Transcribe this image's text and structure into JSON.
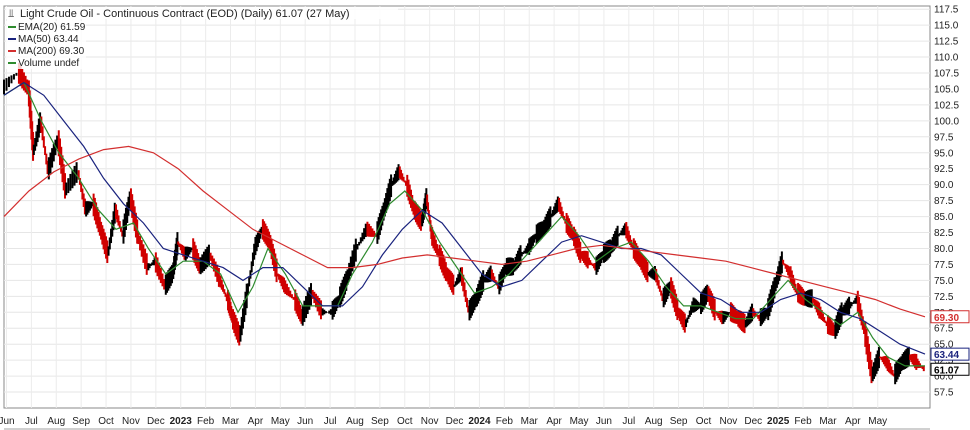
{
  "chart_data": {
    "type": "line",
    "title": "Light Crude Oil - Continuous Contract (EOD) (Daily) 61.07 (27 May)",
    "ylim": [
      55,
      118
    ],
    "grid": true,
    "legend_placement": "top-left",
    "y_ticks": [
      "57.5",
      "60.0",
      "62.5",
      "65.0",
      "67.5",
      "70.0",
      "72.5",
      "75.0",
      "77.5",
      "80.0",
      "82.5",
      "85.0",
      "87.5",
      "90.0",
      "92.5",
      "95.0",
      "97.5",
      "100.0",
      "102.5",
      "105.0",
      "107.5",
      "110.0",
      "112.5",
      "115.0",
      "117.5"
    ],
    "x_labels": [
      {
        "label": "Jun",
        "year": false
      },
      {
        "label": "Jul",
        "year": false
      },
      {
        "label": "Aug",
        "year": false
      },
      {
        "label": "Sep",
        "year": false
      },
      {
        "label": "Oct",
        "year": false
      },
      {
        "label": "Nov",
        "year": false
      },
      {
        "label": "Dec",
        "year": false
      },
      {
        "label": "2023",
        "year": true
      },
      {
        "label": "Feb",
        "year": false
      },
      {
        "label": "Mar",
        "year": false
      },
      {
        "label": "Apr",
        "year": false
      },
      {
        "label": "May",
        "year": false
      },
      {
        "label": "Jun",
        "year": false
      },
      {
        "label": "Jul",
        "year": false
      },
      {
        "label": "Aug",
        "year": false
      },
      {
        "label": "Sep",
        "year": false
      },
      {
        "label": "Oct",
        "year": false
      },
      {
        "label": "Nov",
        "year": false
      },
      {
        "label": "Dec",
        "year": false
      },
      {
        "label": "2024",
        "year": true
      },
      {
        "label": "Feb",
        "year": false
      },
      {
        "label": "Mar",
        "year": false
      },
      {
        "label": "Apr",
        "year": false
      },
      {
        "label": "May",
        "year": false
      },
      {
        "label": "Jun",
        "year": false
      },
      {
        "label": "Jul",
        "year": false
      },
      {
        "label": "Aug",
        "year": false
      },
      {
        "label": "Sep",
        "year": false
      },
      {
        "label": "Oct",
        "year": false
      },
      {
        "label": "Nov",
        "year": false
      },
      {
        "label": "Dec",
        "year": false
      },
      {
        "label": "2025",
        "year": true
      },
      {
        "label": "Feb",
        "year": false
      },
      {
        "label": "Mar",
        "year": false
      },
      {
        "label": "Apr",
        "year": false
      },
      {
        "label": "May",
        "year": false
      }
    ],
    "legend": [
      {
        "label": "EMA(20) 61.59",
        "color": "#2e8b2e"
      },
      {
        "label": "MA(50) 63.44",
        "color": "#1a237e"
      },
      {
        "label": "MA(200) 69.30",
        "color": "#d32f2f"
      },
      {
        "label": "Volume undef",
        "color": "#2e8b2e"
      }
    ],
    "price_tags": [
      {
        "value": 69.3,
        "label": "69.30",
        "color": "#d32f2f",
        "bg": "#ffffff"
      },
      {
        "value": 63.44,
        "label": "63.44",
        "color": "#1a237e",
        "bg": "#ffffff"
      },
      {
        "value": 61.07,
        "label": "61.07",
        "color": "#000000",
        "bg": "#ffffff"
      }
    ],
    "series": [
      {
        "kind": "price",
        "color": "#000000",
        "down_color": "#d00000",
        "points": [
          [
            0,
            105
          ],
          [
            0.6,
            107.5
          ],
          [
            1.0,
            105
          ],
          [
            1.2,
            95
          ],
          [
            1.5,
            100
          ],
          [
            1.8,
            92
          ],
          [
            2.2,
            97
          ],
          [
            2.5,
            89
          ],
          [
            3.0,
            92
          ],
          [
            3.3,
            86
          ],
          [
            3.6,
            87
          ],
          [
            3.9,
            83
          ],
          [
            4.2,
            79
          ],
          [
            4.5,
            86
          ],
          [
            4.8,
            82
          ],
          [
            5.1,
            88
          ],
          [
            5.4,
            82
          ],
          [
            5.8,
            77
          ],
          [
            6.1,
            78
          ],
          [
            6.5,
            74
          ],
          [
            6.8,
            76
          ],
          [
            7.0,
            81
          ],
          [
            7.3,
            79
          ],
          [
            7.6,
            80
          ],
          [
            7.9,
            77
          ],
          [
            8.3,
            79
          ],
          [
            8.7,
            75
          ],
          [
            9.0,
            72
          ],
          [
            9.2,
            69
          ],
          [
            9.5,
            66
          ],
          [
            9.8,
            73
          ],
          [
            10.1,
            80
          ],
          [
            10.4,
            83
          ],
          [
            10.7,
            81
          ],
          [
            11.0,
            76
          ],
          [
            11.3,
            74
          ],
          [
            11.7,
            72
          ],
          [
            12.0,
            69
          ],
          [
            12.4,
            73
          ],
          [
            12.8,
            70
          ],
          [
            13.2,
            70
          ],
          [
            13.5,
            72
          ],
          [
            13.8,
            75
          ],
          [
            14.2,
            80
          ],
          [
            14.6,
            83
          ],
          [
            15.0,
            82
          ],
          [
            15.3,
            86
          ],
          [
            15.6,
            90
          ],
          [
            15.9,
            92
          ],
          [
            16.2,
            90
          ],
          [
            16.5,
            86
          ],
          [
            16.8,
            84
          ],
          [
            17.0,
            88
          ],
          [
            17.2,
            82
          ],
          [
            17.5,
            79
          ],
          [
            17.8,
            76
          ],
          [
            18.1,
            74
          ],
          [
            18.4,
            76
          ],
          [
            18.7,
            70
          ],
          [
            19.0,
            72
          ],
          [
            19.3,
            75
          ],
          [
            19.6,
            76
          ],
          [
            19.9,
            74
          ],
          [
            20.2,
            77
          ],
          [
            20.5,
            77
          ],
          [
            20.8,
            79
          ],
          [
            21.1,
            80
          ],
          [
            21.4,
            82
          ],
          [
            21.7,
            83
          ],
          [
            22.0,
            85
          ],
          [
            22.3,
            87
          ],
          [
            22.6,
            84
          ],
          [
            22.9,
            82
          ],
          [
            23.2,
            79
          ],
          [
            23.5,
            78
          ],
          [
            23.8,
            77
          ],
          [
            24.1,
            79
          ],
          [
            24.4,
            80
          ],
          [
            24.7,
            82
          ],
          [
            25.0,
            83
          ],
          [
            25.3,
            80
          ],
          [
            25.6,
            78
          ],
          [
            25.9,
            76
          ],
          [
            26.2,
            76
          ],
          [
            26.5,
            72
          ],
          [
            26.8,
            74
          ],
          [
            27.1,
            70
          ],
          [
            27.4,
            68
          ],
          [
            27.7,
            71
          ],
          [
            28.0,
            71
          ],
          [
            28.3,
            73
          ],
          [
            28.6,
            70
          ],
          [
            28.9,
            69
          ],
          [
            29.2,
            70
          ],
          [
            29.5,
            69
          ],
          [
            29.8,
            68
          ],
          [
            30.1,
            70
          ],
          [
            30.4,
            69
          ],
          [
            30.7,
            70
          ],
          [
            31.0,
            74
          ],
          [
            31.3,
            78
          ],
          [
            31.6,
            76
          ],
          [
            31.9,
            73
          ],
          [
            32.2,
            72
          ],
          [
            32.5,
            72
          ],
          [
            32.8,
            70
          ],
          [
            33.1,
            68
          ],
          [
            33.4,
            67
          ],
          [
            33.7,
            70
          ],
          [
            34.0,
            71
          ],
          [
            34.3,
            72
          ],
          [
            34.6,
            67
          ],
          [
            34.9,
            60
          ],
          [
            35.2,
            63
          ],
          [
            35.5,
            62
          ],
          [
            35.8,
            60
          ],
          [
            36.1,
            62
          ],
          [
            36.4,
            63
          ],
          [
            36.7,
            62
          ],
          [
            37.0,
            61.07
          ]
        ]
      },
      {
        "kind": "ema20",
        "color": "#2e8b2e",
        "points": [
          [
            0,
            104
          ],
          [
            0.8,
            106
          ],
          [
            1.5,
            100
          ],
          [
            2.2,
            95
          ],
          [
            3.0,
            91
          ],
          [
            3.8,
            86
          ],
          [
            4.5,
            83
          ],
          [
            5.2,
            84
          ],
          [
            5.8,
            80
          ],
          [
            6.5,
            76
          ],
          [
            7.2,
            78
          ],
          [
            8.0,
            78
          ],
          [
            8.7,
            76
          ],
          [
            9.4,
            70
          ],
          [
            10.0,
            74
          ],
          [
            10.6,
            80
          ],
          [
            11.3,
            76
          ],
          [
            12.0,
            71
          ],
          [
            12.8,
            71
          ],
          [
            13.4,
            71
          ],
          [
            14.0,
            76
          ],
          [
            14.8,
            81
          ],
          [
            15.5,
            87
          ],
          [
            16.1,
            89
          ],
          [
            16.8,
            86
          ],
          [
            17.5,
            81
          ],
          [
            18.2,
            77
          ],
          [
            18.9,
            73
          ],
          [
            19.6,
            74
          ],
          [
            20.3,
            76
          ],
          [
            21.0,
            79
          ],
          [
            21.7,
            82
          ],
          [
            22.4,
            85
          ],
          [
            23.1,
            82
          ],
          [
            23.8,
            78
          ],
          [
            24.5,
            80
          ],
          [
            25.2,
            81
          ],
          [
            25.9,
            78
          ],
          [
            26.6,
            74
          ],
          [
            27.3,
            71
          ],
          [
            28.0,
            71
          ],
          [
            28.7,
            70
          ],
          [
            29.4,
            69
          ],
          [
            30.1,
            69
          ],
          [
            30.8,
            72
          ],
          [
            31.5,
            75
          ],
          [
            32.2,
            72
          ],
          [
            32.9,
            70
          ],
          [
            33.6,
            68
          ],
          [
            34.3,
            70
          ],
          [
            34.9,
            66
          ],
          [
            35.5,
            63
          ],
          [
            36.2,
            61.6
          ],
          [
            37.0,
            61.59
          ]
        ]
      },
      {
        "kind": "ma50",
        "color": "#1a237e",
        "points": [
          [
            0,
            104
          ],
          [
            0.8,
            106
          ],
          [
            1.6,
            104
          ],
          [
            2.4,
            100
          ],
          [
            3.2,
            96
          ],
          [
            4.0,
            91
          ],
          [
            4.8,
            87
          ],
          [
            5.6,
            84
          ],
          [
            6.4,
            80
          ],
          [
            7.2,
            79
          ],
          [
            8.0,
            78
          ],
          [
            8.8,
            77
          ],
          [
            9.6,
            75
          ],
          [
            10.4,
            77
          ],
          [
            11.2,
            77
          ],
          [
            12.0,
            74
          ],
          [
            12.8,
            71
          ],
          [
            13.6,
            71
          ],
          [
            14.4,
            74
          ],
          [
            15.2,
            79
          ],
          [
            16.0,
            83
          ],
          [
            16.8,
            86
          ],
          [
            17.6,
            84
          ],
          [
            18.4,
            80
          ],
          [
            19.2,
            76
          ],
          [
            20.0,
            74
          ],
          [
            20.8,
            75
          ],
          [
            21.6,
            78
          ],
          [
            22.4,
            81
          ],
          [
            23.2,
            82
          ],
          [
            24.0,
            81
          ],
          [
            24.8,
            80
          ],
          [
            25.6,
            80
          ],
          [
            26.4,
            79
          ],
          [
            27.2,
            76
          ],
          [
            28.0,
            73
          ],
          [
            28.8,
            72
          ],
          [
            29.6,
            70
          ],
          [
            30.4,
            70
          ],
          [
            31.2,
            72
          ],
          [
            32.0,
            73
          ],
          [
            32.8,
            72
          ],
          [
            33.6,
            70
          ],
          [
            34.4,
            69
          ],
          [
            35.2,
            67
          ],
          [
            36.0,
            65
          ],
          [
            37.0,
            63.44
          ]
        ]
      },
      {
        "kind": "ma200",
        "color": "#d32f2f",
        "points": [
          [
            0,
            85
          ],
          [
            1.0,
            89
          ],
          [
            2.0,
            92
          ],
          [
            3.0,
            94
          ],
          [
            4.0,
            95.5
          ],
          [
            5.0,
            96
          ],
          [
            6.0,
            95
          ],
          [
            7.0,
            92.5
          ],
          [
            8.0,
            89
          ],
          [
            9.0,
            86
          ],
          [
            10.0,
            83
          ],
          [
            11.0,
            81
          ],
          [
            12.0,
            79
          ],
          [
            13.0,
            77
          ],
          [
            14.0,
            77
          ],
          [
            15.0,
            77.5
          ],
          [
            16.0,
            78.5
          ],
          [
            17.0,
            79
          ],
          [
            18.0,
            78.5
          ],
          [
            19.0,
            78
          ],
          [
            20.0,
            77.5
          ],
          [
            21.0,
            78
          ],
          [
            22.0,
            79
          ],
          [
            23.0,
            80
          ],
          [
            24.0,
            80.5
          ],
          [
            25.0,
            80
          ],
          [
            26.0,
            79.5
          ],
          [
            27.0,
            79
          ],
          [
            28.0,
            78.5
          ],
          [
            29.0,
            78
          ],
          [
            30.0,
            77
          ],
          [
            31.0,
            76
          ],
          [
            32.0,
            75
          ],
          [
            33.0,
            74
          ],
          [
            34.0,
            73
          ],
          [
            35.0,
            72
          ],
          [
            36.0,
            70.5
          ],
          [
            37.0,
            69.3
          ]
        ]
      }
    ]
  }
}
